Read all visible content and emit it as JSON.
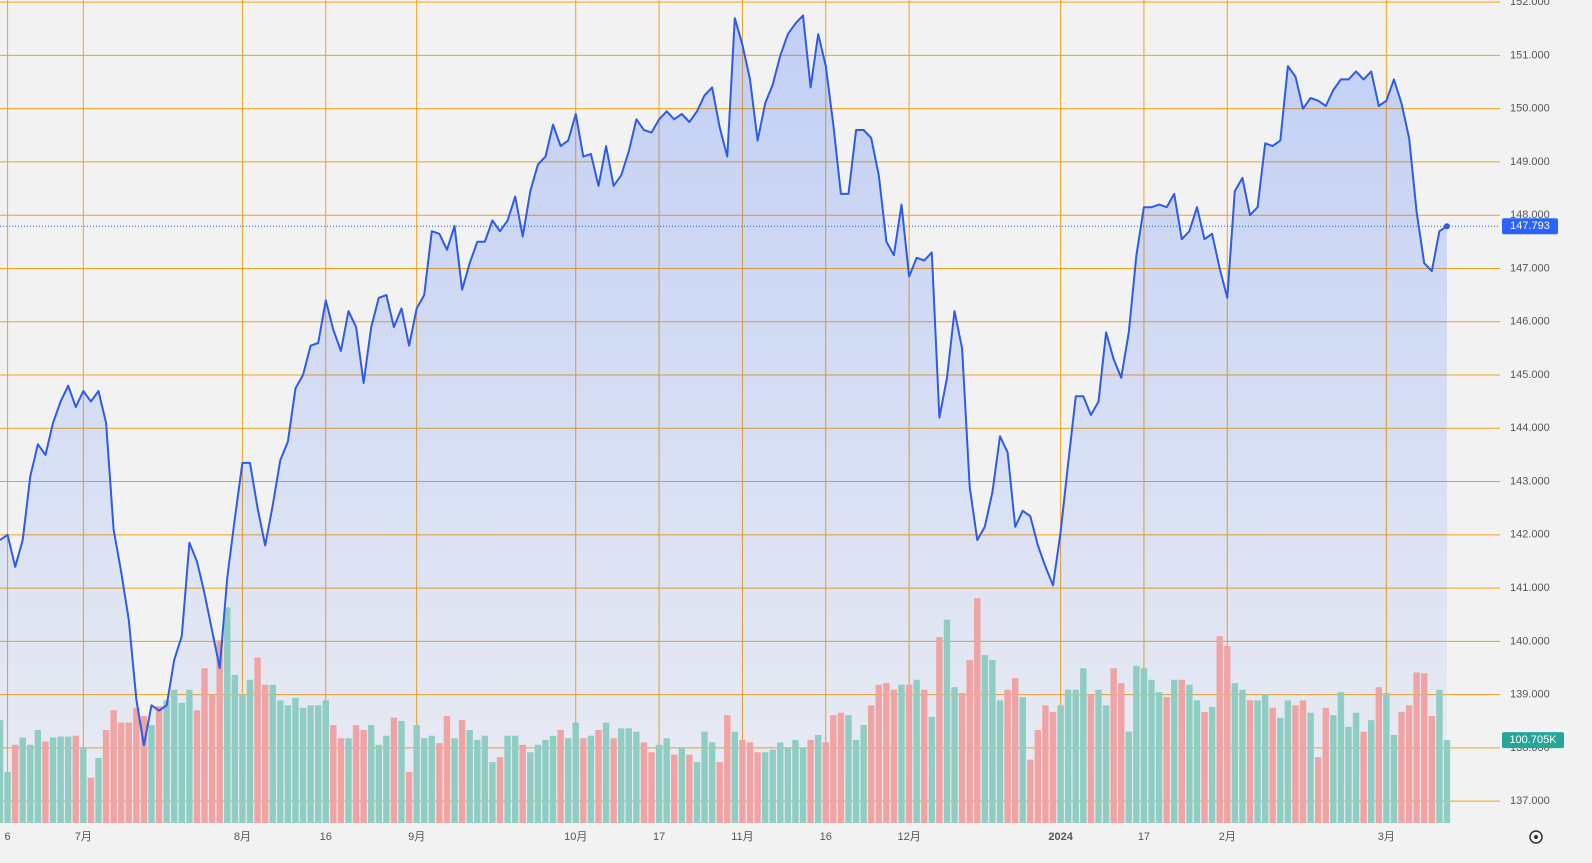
{
  "chart_data": {
    "type": "line",
    "values": [
      141.9,
      142.0,
      141.4,
      141.9,
      143.1,
      143.7,
      143.5,
      144.1,
      144.5,
      144.8,
      144.4,
      144.7,
      144.5,
      144.7,
      144.1,
      142.1,
      141.3,
      140.4,
      138.9,
      138.05,
      138.8,
      138.7,
      138.8,
      139.65,
      140.1,
      141.85,
      141.5,
      140.9,
      140.2,
      139.5,
      141.2,
      142.3,
      143.35,
      143.35,
      142.5,
      141.8,
      142.55,
      143.4,
      143.75,
      144.75,
      145.0,
      145.55,
      145.6,
      146.4,
      145.85,
      145.45,
      146.2,
      145.9,
      144.85,
      145.9,
      146.45,
      146.5,
      145.9,
      146.25,
      145.55,
      146.25,
      146.5,
      147.7,
      147.65,
      147.35,
      147.8,
      146.6,
      147.1,
      147.5,
      147.5,
      147.9,
      147.7,
      147.9,
      148.35,
      147.6,
      148.45,
      148.95,
      149.1,
      149.7,
      149.3,
      149.4,
      149.9,
      149.1,
      149.15,
      148.55,
      149.3,
      148.55,
      148.75,
      149.2,
      149.8,
      149.6,
      149.55,
      149.8,
      149.95,
      149.8,
      149.9,
      149.75,
      149.95,
      150.25,
      150.4,
      149.65,
      149.1,
      151.7,
      151.2,
      150.55,
      149.4,
      150.1,
      150.45,
      151.0,
      151.4,
      151.6,
      151.75,
      150.4,
      151.4,
      150.8,
      149.7,
      148.4,
      148.4,
      149.6,
      149.6,
      149.45,
      148.75,
      147.5,
      147.25,
      148.2,
      146.85,
      147.2,
      147.15,
      147.3,
      144.2,
      144.95,
      146.2,
      145.5,
      142.9,
      141.9,
      142.15,
      142.8,
      143.85,
      143.55,
      142.15,
      142.45,
      142.35,
      141.8,
      141.4,
      141.05,
      142.05,
      143.35,
      144.6,
      144.6,
      144.25,
      144.5,
      145.8,
      145.3,
      144.95,
      145.8,
      147.25,
      148.15,
      148.15,
      148.2,
      148.15,
      148.4,
      147.55,
      147.7,
      148.15,
      147.55,
      147.65,
      147.0,
      146.45,
      148.45,
      148.7,
      148.0,
      148.15,
      149.35,
      149.3,
      149.4,
      150.8,
      150.6,
      150.0,
      150.2,
      150.15,
      150.05,
      150.35,
      150.55,
      150.55,
      150.7,
      150.55,
      150.7,
      150.05,
      150.15,
      150.55,
      150.1,
      149.45,
      148.05,
      147.1,
      146.95,
      147.7,
      147.793
    ],
    "volume": [
      125,
      62,
      95,
      104,
      95,
      113,
      99,
      104,
      105,
      105,
      106,
      91,
      55,
      79,
      113,
      137,
      122,
      122,
      140,
      130,
      119,
      142,
      149,
      162,
      146,
      162,
      137,
      188,
      156,
      222,
      262,
      180,
      156,
      174,
      201,
      168,
      168,
      149,
      143,
      152,
      140,
      143,
      143,
      149,
      119,
      103,
      103,
      119,
      113,
      119,
      95,
      106,
      128,
      124,
      62,
      119,
      103,
      106,
      97,
      130,
      103,
      125,
      113,
      101,
      106,
      74,
      80,
      106,
      106,
      95,
      86,
      95,
      101,
      106,
      113,
      103,
      122,
      103,
      106,
      113,
      122,
      103,
      115,
      115,
      111,
      98,
      86,
      95,
      103,
      83,
      91,
      83,
      74,
      111,
      98,
      74,
      131,
      111,
      101,
      98,
      86,
      86,
      89,
      98,
      91,
      101,
      91,
      101,
      107,
      98,
      131,
      134,
      131,
      101,
      119,
      143,
      168,
      170,
      162,
      168,
      168,
      174,
      162,
      129,
      226,
      247,
      165,
      158,
      198,
      273,
      204,
      198,
      149,
      162,
      176,
      153,
      77,
      113,
      143,
      135,
      143,
      162,
      162,
      188,
      156,
      162,
      143,
      188,
      170,
      111,
      191,
      188,
      174,
      159,
      153,
      174,
      174,
      168,
      149,
      135,
      141,
      227,
      215,
      170,
      162,
      149,
      149,
      156,
      140,
      128,
      149,
      143,
      149,
      134,
      80,
      140,
      131,
      159,
      117,
      134,
      111,
      125,
      165,
      158,
      107,
      135,
      143,
      183,
      182,
      130,
      162,
      100.705
    ],
    "volume_value_labels": {
      "191": "100.705K"
    },
    "color": "#2e5be8",
    "up_color": "#8fcdc3",
    "down_color": "#f0a3a3",
    "grid_color": "#f5a01a",
    "xlim": [
      0,
      198
    ],
    "xticks": [
      {
        "value": 1,
        "label": "6"
      },
      {
        "value": 11,
        "label": "7月"
      },
      {
        "value": 32,
        "label": "8月"
      },
      {
        "value": 43,
        "label": "16"
      },
      {
        "value": 55,
        "label": "9月"
      },
      {
        "value": 76,
        "label": "10月"
      },
      {
        "value": 87,
        "label": "17"
      },
      {
        "value": 98,
        "label": "11月"
      },
      {
        "value": 109,
        "label": "16"
      },
      {
        "value": 120,
        "label": "12月"
      },
      {
        "value": 140,
        "label": "2024"
      },
      {
        "value": 151,
        "label": "17"
      },
      {
        "value": 162,
        "label": "2月"
      },
      {
        "value": 183,
        "label": "3月"
      }
    ],
    "ylim": [
      136.59,
      152.04
    ],
    "yticks": [
      {
        "value": 137,
        "label": "137.000"
      },
      {
        "value": 138,
        "label": "138.000"
      },
      {
        "value": 139,
        "label": "139.000"
      },
      {
        "value": 140,
        "label": "140.000"
      },
      {
        "value": 141,
        "label": "141.000"
      },
      {
        "value": 142,
        "label": "142.000"
      },
      {
        "value": 143,
        "label": "143.000"
      },
      {
        "value": 144,
        "label": "144.000"
      },
      {
        "value": 145,
        "label": "145.000"
      },
      {
        "value": 146,
        "label": "146.000"
      },
      {
        "value": 147,
        "label": "147.000"
      },
      {
        "value": 148,
        "label": "148.000"
      },
      {
        "value": 149,
        "label": "149.000"
      },
      {
        "value": 150,
        "label": "150.000"
      },
      {
        "value": 151,
        "label": "151.000"
      },
      {
        "value": 152,
        "label": "152.000"
      }
    ],
    "volume_lim": [
      0,
      1000
    ],
    "grid": true
  }
}
